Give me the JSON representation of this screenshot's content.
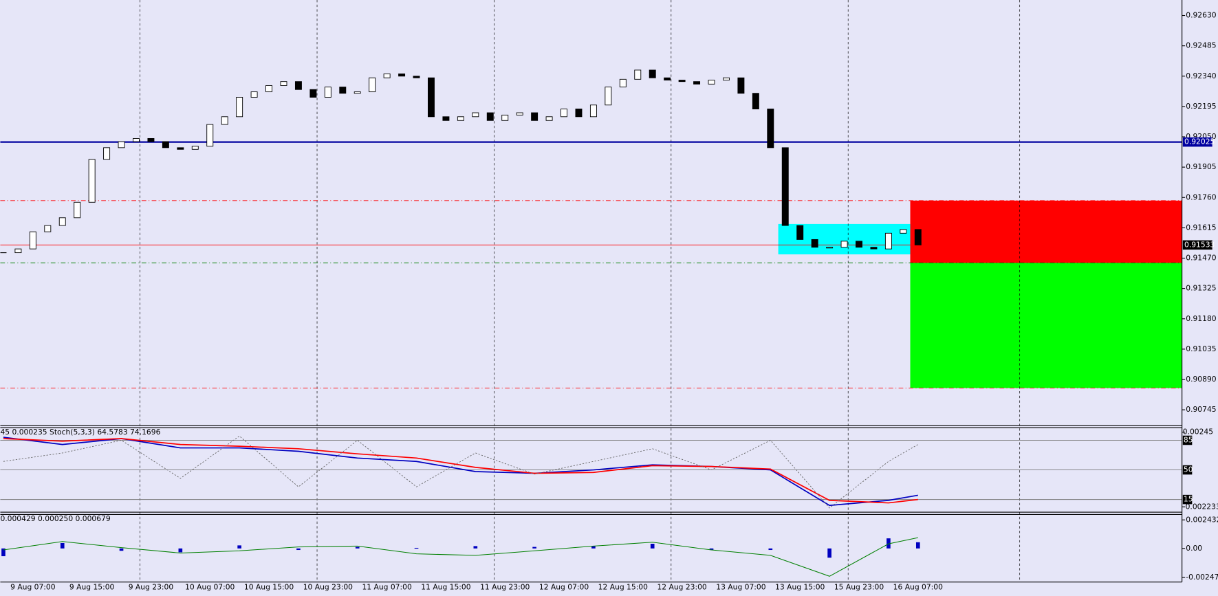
{
  "chart_data": [
    {
      "type": "candlestick",
      "categories": [
        null,
        null,
        "9 Aug 07:00",
        null,
        null,
        null,
        "9 Aug 15:00",
        null,
        null,
        null,
        "9 Aug 23:00",
        null,
        null,
        null,
        "10 Aug 07:00",
        null,
        null,
        null,
        "10 Aug 15:00",
        null,
        null,
        null,
        "10 Aug 23:00",
        null,
        null,
        null,
        "11 Aug 07:00",
        null,
        null,
        null,
        "11 Aug 15:00",
        null,
        null,
        null,
        "11 Aug 23:00",
        null,
        null,
        null,
        "12 Aug 07:00",
        null,
        null,
        null,
        "12 Aug 15:00",
        null,
        null,
        null,
        "12 Aug 23:00",
        null,
        null,
        null,
        "13 Aug 07:00",
        null,
        null,
        null,
        "13 Aug 15:00",
        null,
        null,
        null,
        "15 Aug 23:00",
        null,
        null,
        null,
        "16 Aug 07:00"
      ],
      "values": [
        0.91496,
        0.91514,
        0.91596,
        0.91626,
        0.91663,
        0.91737,
        0.91942,
        0.91998,
        0.92027,
        0.92042,
        0.92027,
        0.91998,
        0.9199,
        0.92005,
        0.92109,
        0.92146,
        0.92239,
        0.92265,
        0.92295,
        0.92314,
        0.92276,
        0.92239,
        0.92288,
        0.92258,
        0.92265,
        0.92332,
        0.92351,
        0.9234,
        0.92332,
        0.92146,
        0.92128,
        0.92146,
        0.92165,
        0.92128,
        0.92154,
        0.92165,
        0.92128,
        0.92146,
        0.92183,
        0.92146,
        0.92202,
        0.92288,
        0.92325,
        0.92369,
        0.92332,
        0.92321,
        0.92314,
        0.92302,
        0.92321,
        0.92332,
        0.92258,
        0.92183,
        0.91998,
        0.91626,
        0.91559,
        0.91522,
        0.91522,
        0.91551,
        0.91522,
        0.91514,
        0.91589,
        0.91607,
        0.91533
      ],
      "up_color": "#ffffff",
      "down_color": "#000000",
      "ylim": [
        0.90671,
        0.92704
      ],
      "yticks": [
        {
          "value": 0.9263,
          "label": "0.92630"
        },
        {
          "value": 0.92485,
          "label": "0.92485"
        },
        {
          "value": 0.9234,
          "label": "0.92340"
        },
        {
          "value": 0.92195,
          "label": "0.92195"
        },
        {
          "value": 0.9205,
          "label": "0.92050"
        },
        {
          "value": 0.91905,
          "label": "0.91905"
        },
        {
          "value": 0.9176,
          "label": "0.91760"
        },
        {
          "value": 0.91615,
          "label": "0.91615"
        },
        {
          "value": 0.9147,
          "label": "0.91470"
        },
        {
          "value": 0.91325,
          "label": "0.91325"
        },
        {
          "value": 0.9118,
          "label": "0.91180"
        },
        {
          "value": 0.91035,
          "label": "0.91035"
        },
        {
          "value": 0.9089,
          "label": "0.90890"
        },
        {
          "value": 0.90745,
          "label": "0.90745"
        }
      ],
      "zones": [
        {
          "from": 0.91488,
          "to": 0.91633,
          "color": "#00ffff"
        },
        {
          "from": 0.91447,
          "to": 0.91745,
          "color": "#ff0000"
        },
        {
          "from": 0.90849,
          "to": 0.91447,
          "color": "#00ff00"
        }
      ],
      "levels": [
        {
          "value": 0.92025,
          "color": "#0000a0",
          "tag_color": "#0000a0"
        },
        {
          "value": 0.91533,
          "color": "#ff0000",
          "tag_color": "#000000"
        },
        {
          "value": 0.91745,
          "color": "#ff0000",
          "dash": true
        },
        {
          "value": 0.91447,
          "color": "#008000",
          "dash": true
        },
        {
          "value": 0.90849,
          "color": "#ff0000",
          "dash": true
        }
      ]
    },
    {
      "type": "line",
      "title": "45 0.000235 Stoch(5,3,3) 64.5783 74.1696",
      "x": [
        0,
        4,
        8,
        12,
        16,
        20,
        24,
        28,
        32,
        36,
        40,
        44,
        48,
        52,
        56,
        60,
        62
      ],
      "series": [
        {
          "color": "#0000c0",
          "values": [
            88.6,
            80,
            87,
            76,
            76,
            72,
            64,
            60,
            48,
            46,
            50,
            56,
            54,
            50,
            8,
            14,
            20
          ]
        },
        {
          "color": "#ff0000",
          "values": [
            87,
            84,
            87,
            80,
            78,
            75,
            69,
            64,
            53,
            46,
            47,
            55,
            54,
            51,
            14,
            11,
            15
          ]
        },
        {
          "color": "#666666",
          "dash": true,
          "values": [
            60,
            70,
            85,
            40,
            90,
            30,
            85,
            30,
            70,
            45,
            60,
            75,
            50,
            85,
            5,
            60,
            80
          ]
        }
      ],
      "ylim": [
        0,
        100
      ],
      "yticks": [
        85,
        50,
        15
      ],
      "y2lim": [
        -0.002568,
        0.002737
      ],
      "y2ticks": [
        0.00245,
        -0.002233
      ]
    },
    {
      "type": "macd",
      "title": "0.000429 0.000250 0.000679",
      "x": [
        0,
        4,
        8,
        12,
        16,
        20,
        24,
        28,
        32,
        36,
        40,
        44,
        48,
        52,
        56,
        60,
        62
      ],
      "values": [
        -0.00066,
        0.00046,
        -0.0002,
        -0.00033,
        0.00026,
        -0.00013,
        0.00013,
        5e-05,
        0.0002,
        0.00013,
        0.0002,
        0.0004,
        -0.00013,
        -0.00013,
        -0.00079,
        0.00086,
        0.00053
      ],
      "color": "#0000c0",
      "series": [
        {
          "color": "#008000",
          "values": [
            -0.00013,
            0.00059,
            7e-05,
            -0.00039,
            -0.0002,
            0.00013,
            0.0002,
            -0.00046,
            -0.00059,
            -0.0002,
            0.0002,
            0.00053,
            -0.00013,
            -0.00059,
            -0.00237,
            0.00039,
            0.00092
          ]
        }
      ],
      "ylim": [
        -0.002863,
        0.002892
      ],
      "yticks": [
        0.002432,
        {
          "value": 0,
          "label": "0.00"
        },
        -0.002473
      ]
    }
  ]
}
